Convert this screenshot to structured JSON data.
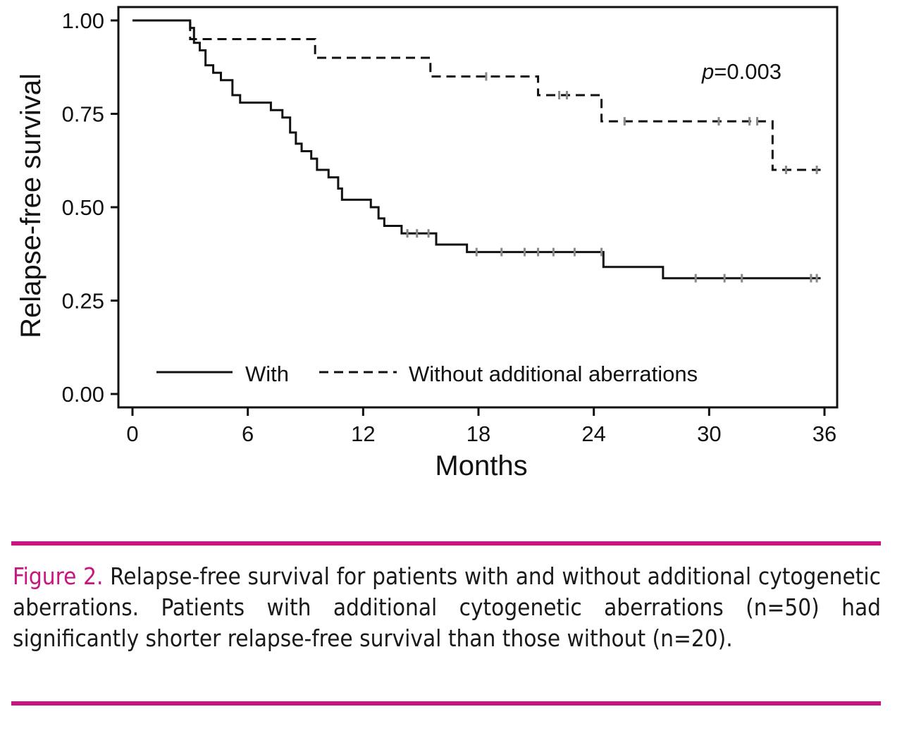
{
  "theme": {
    "accent": "#c8157f",
    "ink": "#111111",
    "censor": "#888888"
  },
  "chart_data": {
    "type": "line",
    "subtype": "kaplan-meier step",
    "xlabel": "Months",
    "ylabel": "Relapse-free survival",
    "xlim": [
      0,
      36
    ],
    "ylim": [
      0,
      1
    ],
    "xticks": [
      "0",
      "6",
      "12",
      "18",
      "24",
      "30",
      "36"
    ],
    "yticks": [
      "0.00",
      "0.25",
      "0.50",
      "0.75",
      "1.00"
    ],
    "annotation": {
      "italic": "p",
      "rest": "=0.003"
    },
    "legend_position": "bottom-inside",
    "series": [
      {
        "name": "With",
        "legend_label": "With",
        "style": "solid",
        "steps": [
          [
            0,
            1.0
          ],
          [
            3.0,
            0.98
          ],
          [
            3.2,
            0.94
          ],
          [
            3.5,
            0.92
          ],
          [
            3.8,
            0.88
          ],
          [
            4.2,
            0.86
          ],
          [
            4.6,
            0.84
          ],
          [
            5.2,
            0.8
          ],
          [
            5.6,
            0.78
          ],
          [
            7.2,
            0.76
          ],
          [
            7.8,
            0.74
          ],
          [
            8.2,
            0.7
          ],
          [
            8.5,
            0.67
          ],
          [
            8.8,
            0.65
          ],
          [
            9.3,
            0.63
          ],
          [
            9.6,
            0.6
          ],
          [
            10.2,
            0.58
          ],
          [
            10.7,
            0.55
          ],
          [
            10.9,
            0.52
          ],
          [
            12.4,
            0.5
          ],
          [
            12.8,
            0.47
          ],
          [
            13.1,
            0.45
          ],
          [
            14.0,
            0.43
          ],
          [
            15.8,
            0.4
          ],
          [
            17.4,
            0.38
          ],
          [
            24.5,
            0.34
          ],
          [
            27.6,
            0.31
          ]
        ],
        "end_x": 35.8,
        "censored": [
          14.3,
          14.8,
          15.4,
          17.9,
          19.2,
          20.4,
          21.1,
          21.9,
          23.0,
          24.4,
          29.3,
          30.8,
          31.7,
          35.3,
          35.6
        ]
      },
      {
        "name": "Without additional aberrations",
        "legend_label": "Without additional aberrations",
        "style": "dashed",
        "steps": [
          [
            0,
            1.0
          ],
          [
            3.0,
            0.95
          ],
          [
            9.5,
            0.9
          ],
          [
            15.5,
            0.85
          ],
          [
            21.1,
            0.8
          ],
          [
            24.4,
            0.73
          ],
          [
            33.3,
            0.6
          ]
        ],
        "end_x": 35.8,
        "censored": [
          18.4,
          22.2,
          22.6,
          25.6,
          30.5,
          32.1,
          32.5,
          34.0,
          35.6
        ]
      }
    ]
  },
  "caption": {
    "label": "Figure 2.",
    "text": "Relapse-free survival for patients with and without additional cytogenetic aberrations. Patients with additional cytogenetic aberrations (n=50) had significantly shorter relapse-free survival than those without (n=20)."
  }
}
